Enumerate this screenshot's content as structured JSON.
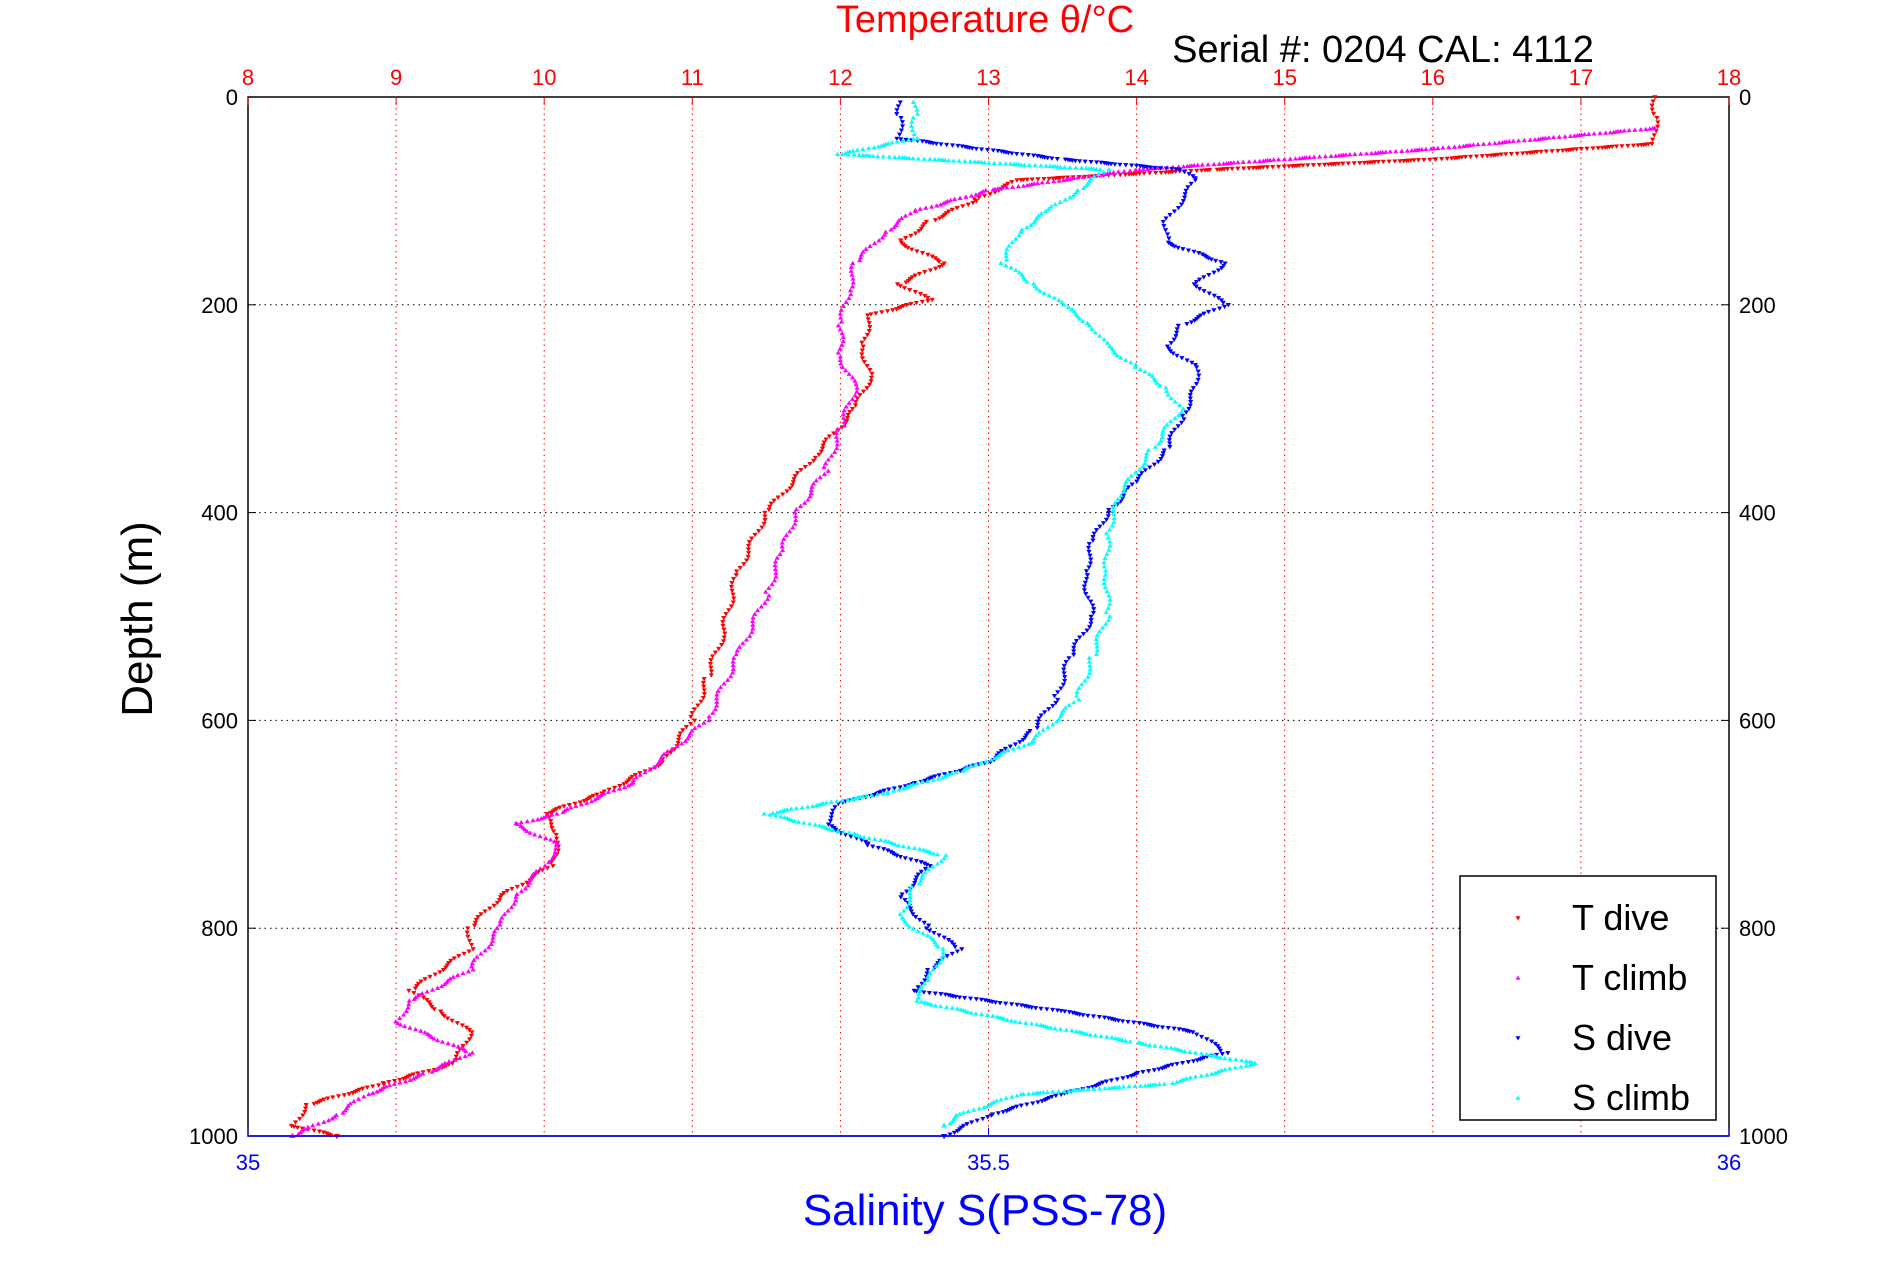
{
  "chart_data": {
    "type": "scatter",
    "title": "Temperature θ/°C",
    "subtitle": "Serial #: 0204  CAL: 4112",
    "xlabel": "Salinity S(PSS-78)",
    "ylabel": "Depth (m)",
    "x_bottom": {
      "label": "Salinity S(PSS-78)",
      "lim": [
        35,
        36
      ],
      "ticks": [
        "35",
        "35.5",
        "36"
      ],
      "color": "#0000ff"
    },
    "x_top": {
      "label": "Temperature θ/°C",
      "lim": [
        8,
        18
      ],
      "ticks": [
        "8",
        "9",
        "10",
        "11",
        "12",
        "13",
        "14",
        "15",
        "16",
        "17",
        "18"
      ],
      "color": "#ff0000"
    },
    "y": {
      "lim": [
        0,
        1000
      ],
      "reversed": true,
      "ticks": [
        "0",
        "200",
        "400",
        "600",
        "800",
        "1000"
      ]
    },
    "grid": true,
    "legend": {
      "placement": "bottom-right",
      "entries": [
        "T dive",
        "T climb",
        "S dive",
        "S climb"
      ]
    },
    "series": [
      {
        "name": "T dive",
        "color": "#ff0000",
        "marker": "down-triangle",
        "axis": "temperature",
        "points": [
          [
            17.5,
            0
          ],
          [
            17.5,
            20
          ],
          [
            17.5,
            45
          ],
          [
            16,
            60
          ],
          [
            14.5,
            70
          ],
          [
            13.2,
            80
          ],
          [
            12.9,
            100
          ],
          [
            12.6,
            120
          ],
          [
            12.4,
            140
          ],
          [
            12.7,
            160
          ],
          [
            12.4,
            180
          ],
          [
            12.6,
            195
          ],
          [
            12.2,
            210
          ],
          [
            12.15,
            240
          ],
          [
            12.2,
            270
          ],
          [
            12.1,
            300
          ],
          [
            11.8,
            350
          ],
          [
            11.5,
            400
          ],
          [
            11.3,
            460
          ],
          [
            11.2,
            520
          ],
          [
            11.1,
            560
          ],
          [
            11.0,
            600
          ],
          [
            10.8,
            640
          ],
          [
            10.4,
            670
          ],
          [
            10.0,
            690
          ],
          [
            10.1,
            710
          ],
          [
            10.05,
            740
          ],
          [
            9.7,
            770
          ],
          [
            9.5,
            800
          ],
          [
            9.5,
            820
          ],
          [
            9.1,
            860
          ],
          [
            9.3,
            880
          ],
          [
            9.5,
            900
          ],
          [
            9.4,
            930
          ],
          [
            8.9,
            950
          ],
          [
            8.4,
            970
          ],
          [
            8.3,
            990
          ],
          [
            8.6,
            1000
          ]
        ]
      },
      {
        "name": "T climb",
        "color": "#ff00ff",
        "marker": "up-triangle",
        "axis": "temperature",
        "points": [
          [
            17.5,
            30
          ],
          [
            16,
            50
          ],
          [
            14,
            70
          ],
          [
            13.0,
            90
          ],
          [
            12.5,
            110
          ],
          [
            12.3,
            130
          ],
          [
            12.1,
            160
          ],
          [
            12.05,
            190
          ],
          [
            12.0,
            220
          ],
          [
            12.0,
            250
          ],
          [
            12.1,
            280
          ],
          [
            12.0,
            320
          ],
          [
            11.9,
            360
          ],
          [
            11.7,
            400
          ],
          [
            11.6,
            440
          ],
          [
            11.5,
            480
          ],
          [
            11.3,
            540
          ],
          [
            11.1,
            600
          ],
          [
            10.6,
            660
          ],
          [
            10.1,
            690
          ],
          [
            9.8,
            700
          ],
          [
            10.1,
            720
          ],
          [
            10.0,
            740
          ],
          [
            9.8,
            770
          ],
          [
            9.7,
            800
          ],
          [
            9.5,
            840
          ],
          [
            9.1,
            870
          ],
          [
            9.0,
            890
          ],
          [
            9.5,
            920
          ],
          [
            9.2,
            940
          ],
          [
            8.8,
            960
          ],
          [
            8.6,
            980
          ],
          [
            8.3,
            1000
          ]
        ]
      },
      {
        "name": "S dive",
        "color": "#0000ff",
        "marker": "down-triangle",
        "axis": "salinity",
        "points": [
          [
            35.44,
            5
          ],
          [
            35.44,
            20
          ],
          [
            35.44,
            40
          ],
          [
            35.55,
            60
          ],
          [
            35.63,
            70
          ],
          [
            35.64,
            80
          ],
          [
            35.63,
            100
          ],
          [
            35.62,
            120
          ],
          [
            35.62,
            140
          ],
          [
            35.66,
            160
          ],
          [
            35.64,
            180
          ],
          [
            35.66,
            200
          ],
          [
            35.63,
            220
          ],
          [
            35.62,
            240
          ],
          [
            35.64,
            260
          ],
          [
            35.64,
            280
          ],
          [
            35.63,
            310
          ],
          [
            35.62,
            340
          ],
          [
            35.6,
            370
          ],
          [
            35.58,
            400
          ],
          [
            35.57,
            430
          ],
          [
            35.565,
            460
          ],
          [
            35.57,
            500
          ],
          [
            35.555,
            540
          ],
          [
            35.545,
            580
          ],
          [
            35.53,
            610
          ],
          [
            35.5,
            640
          ],
          [
            35.45,
            660
          ],
          [
            35.4,
            680
          ],
          [
            35.39,
            700
          ],
          [
            35.42,
            720
          ],
          [
            35.46,
            740
          ],
          [
            35.44,
            770
          ],
          [
            35.46,
            800
          ],
          [
            35.48,
            820
          ],
          [
            35.46,
            840
          ],
          [
            35.45,
            860
          ],
          [
            35.55,
            880
          ],
          [
            35.64,
            900
          ],
          [
            35.66,
            920
          ],
          [
            35.6,
            940
          ],
          [
            35.55,
            960
          ],
          [
            35.5,
            980
          ],
          [
            35.47,
            1000
          ]
        ]
      },
      {
        "name": "S climb",
        "color": "#00ffff",
        "marker": "up-triangle",
        "axis": "salinity",
        "points": [
          [
            35.45,
            5
          ],
          [
            35.45,
            20
          ],
          [
            35.45,
            40
          ],
          [
            35.4,
            55
          ],
          [
            35.58,
            70
          ],
          [
            35.56,
            90
          ],
          [
            35.54,
            110
          ],
          [
            35.52,
            130
          ],
          [
            35.51,
            160
          ],
          [
            35.53,
            180
          ],
          [
            35.55,
            200
          ],
          [
            35.57,
            220
          ],
          [
            35.58,
            240
          ],
          [
            35.6,
            260
          ],
          [
            35.62,
            280
          ],
          [
            35.63,
            300
          ],
          [
            35.61,
            340
          ],
          [
            35.59,
            380
          ],
          [
            35.58,
            420
          ],
          [
            35.58,
            460
          ],
          [
            35.58,
            500
          ],
          [
            35.57,
            540
          ],
          [
            35.56,
            580
          ],
          [
            35.53,
            620
          ],
          [
            35.48,
            650
          ],
          [
            35.43,
            670
          ],
          [
            35.35,
            690
          ],
          [
            35.41,
            710
          ],
          [
            35.47,
            730
          ],
          [
            35.45,
            760
          ],
          [
            35.44,
            790
          ],
          [
            35.47,
            820
          ],
          [
            35.46,
            850
          ],
          [
            35.45,
            870
          ],
          [
            35.52,
            890
          ],
          [
            35.6,
            910
          ],
          [
            35.68,
            930
          ],
          [
            35.62,
            950
          ],
          [
            35.52,
            960
          ],
          [
            35.48,
            980
          ],
          [
            35.47,
            990
          ]
        ]
      }
    ]
  }
}
